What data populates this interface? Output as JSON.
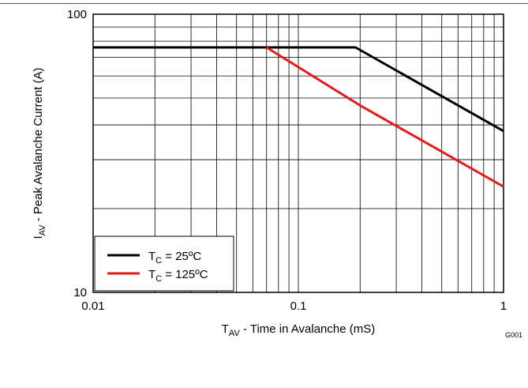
{
  "chart_data": {
    "type": "line",
    "x_scale": "log",
    "y_scale": "log",
    "xlim": [
      0.01,
      1
    ],
    "ylim": [
      10,
      100
    ],
    "x_ticks": [
      "0.01",
      "0.1",
      "1"
    ],
    "y_ticks": [
      "100",
      "10"
    ],
    "xlabel": {
      "main": "T",
      "sub": "AV",
      "rest": " - Time in Avalanche (mS)"
    },
    "ylabel": {
      "main": "I",
      "sub": "AV",
      "rest": " - Peak Avalanche Current (A)"
    },
    "grid": true,
    "legend_position": "bottom-left",
    "figure_id": "G001",
    "series": [
      {
        "name": "TC = 25ºC",
        "label": {
          "main": "T",
          "sub": "C",
          "rest": " = 25ºC"
        },
        "color": "#000000",
        "x": [
          0.01,
          0.19,
          1
        ],
        "y": [
          76,
          76,
          38
        ]
      },
      {
        "name": "TC = 125ºC",
        "label": {
          "main": "T",
          "sub": "C",
          "rest": " = 125ºC"
        },
        "color": "#e31b1b",
        "x": [
          0.07,
          0.2,
          1
        ],
        "y": [
          76,
          47,
          24
        ]
      }
    ]
  }
}
